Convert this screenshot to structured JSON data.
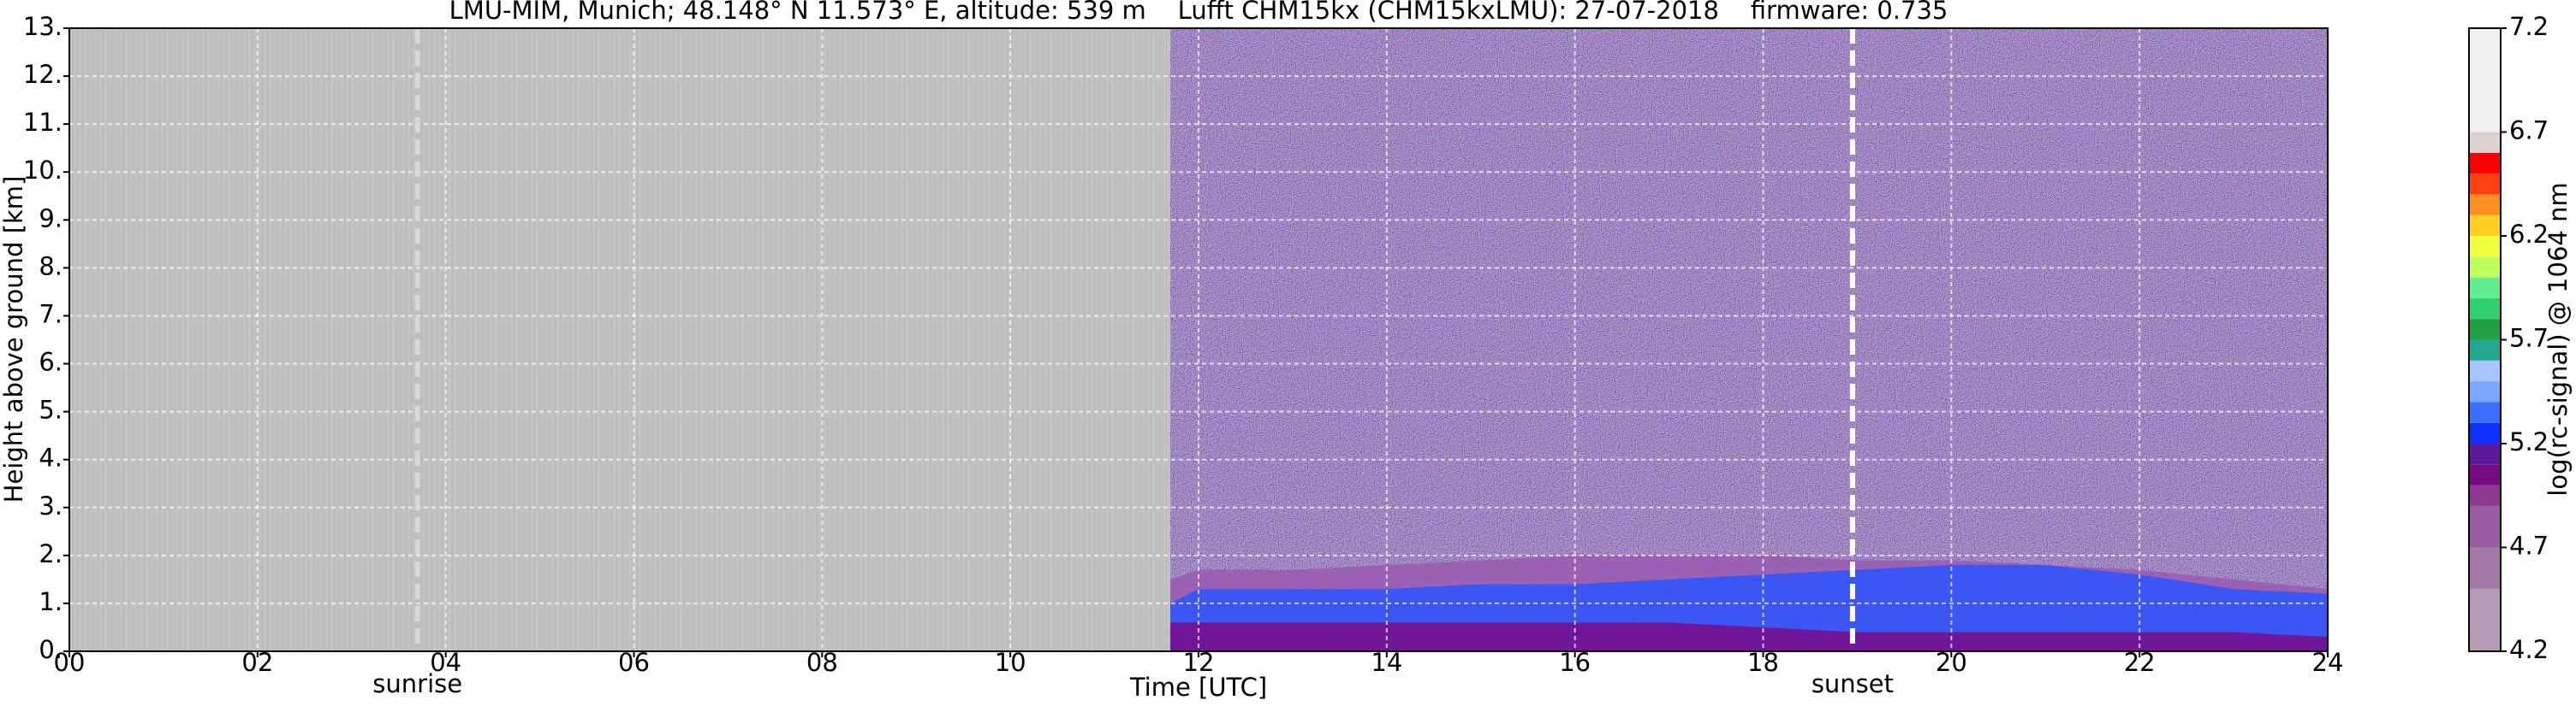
{
  "chart_data": {
    "type": "ceilometer",
    "title": "LMU-MIM, Munich; 48.148° N 11.573° E, altitude: 539 m    Lufft CHM15kx (CHM15kxLMU): 27-07-2018    firmware: 0.735",
    "xlabel": "Time [UTC]",
    "ylabel": "Height above ground [km]",
    "xlim": [
      0,
      24
    ],
    "ylim": [
      0,
      13
    ],
    "xticks": [
      {
        "value": 0,
        "label": "00"
      },
      {
        "value": 2,
        "label": "02"
      },
      {
        "value": 4,
        "label": "04"
      },
      {
        "value": 6,
        "label": "06"
      },
      {
        "value": 8,
        "label": "08"
      },
      {
        "value": 10,
        "label": "10"
      },
      {
        "value": 12,
        "label": "12"
      },
      {
        "value": 14,
        "label": "14"
      },
      {
        "value": 16,
        "label": "16"
      },
      {
        "value": 18,
        "label": "18"
      },
      {
        "value": 20,
        "label": "20"
      },
      {
        "value": 22,
        "label": "22"
      },
      {
        "value": 24,
        "label": "24"
      }
    ],
    "yticks": [
      {
        "value": 0,
        "label": "0."
      },
      {
        "value": 1,
        "label": "1."
      },
      {
        "value": 2,
        "label": "2."
      },
      {
        "value": 3,
        "label": "3."
      },
      {
        "value": 4,
        "label": "4."
      },
      {
        "value": 5,
        "label": "5."
      },
      {
        "value": 6,
        "label": "6."
      },
      {
        "value": 7,
        "label": "7."
      },
      {
        "value": 8,
        "label": "8."
      },
      {
        "value": 9,
        "label": "9."
      },
      {
        "value": 10,
        "label": "10."
      },
      {
        "value": 11,
        "label": "11."
      },
      {
        "value": 12,
        "label": "12."
      },
      {
        "value": 13,
        "label": "13."
      }
    ],
    "grid": true,
    "data_start": 11.7,
    "events": [
      {
        "label": "sunrise",
        "x": 3.7,
        "color": "#d8d8d8"
      },
      {
        "label": "sunset",
        "x": 18.95,
        "color": "#ffffff"
      }
    ],
    "x": [
      11.7,
      12,
      13,
      14,
      15,
      16,
      17,
      18,
      19,
      20,
      21,
      22,
      23,
      24
    ],
    "series": [
      {
        "color": "#9a5ab0",
        "values": [
          1.5,
          1.7,
          1.7,
          1.8,
          1.9,
          2.0,
          2.0,
          2.0,
          1.9,
          1.9,
          1.8,
          1.7,
          1.5,
          1.3
        ]
      },
      {
        "color": "#2a55ff",
        "values": [
          1.0,
          1.3,
          1.3,
          1.3,
          1.4,
          1.4,
          1.5,
          1.6,
          1.7,
          1.8,
          1.8,
          1.6,
          1.3,
          1.2
        ]
      },
      {
        "color": "#7a0a8a",
        "values": [
          0.6,
          0.6,
          0.6,
          0.6,
          0.6,
          0.6,
          0.6,
          0.5,
          0.4,
          0.4,
          0.4,
          0.4,
          0.4,
          0.3
        ]
      }
    ],
    "colorbar": {
      "label": "log(rc-signal) @ 1064 nm",
      "lim": [
        4.2,
        7.2
      ],
      "ticks": [
        4.2,
        4.7,
        5.2,
        5.7,
        6.2,
        6.7,
        7.2
      ],
      "bounds": [
        4.2,
        4.5,
        4.7,
        4.9,
        5.0,
        5.1,
        5.2,
        5.3,
        5.4,
        5.5,
        5.6,
        5.7,
        5.8,
        5.9,
        6.0,
        6.1,
        6.2,
        6.3,
        6.4,
        6.5,
        6.6,
        6.7,
        7.2
      ],
      "colors": [
        "#b39ab5",
        "#a67aa8",
        "#9a5ca0",
        "#8d3a95",
        "#7a0a80",
        "#5a1a9a",
        "#1030ff",
        "#3a70ff",
        "#7aa8ff",
        "#a8c4ff",
        "#20a890",
        "#20a040",
        "#30d070",
        "#60f090",
        "#c0ff60",
        "#f0ff40",
        "#ffd020",
        "#ff9020",
        "#ff4010",
        "#ff0000",
        "#e0d0d0",
        "#f0f0f0"
      ]
    }
  }
}
